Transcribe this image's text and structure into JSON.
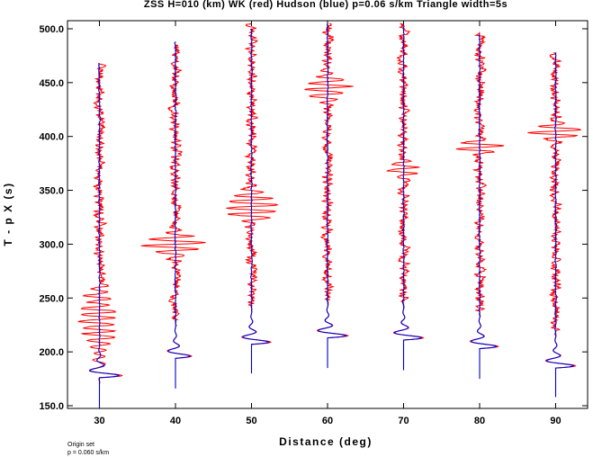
{
  "chart_data": {
    "type": "line",
    "title": "ZSS H=010 (km) WK (red) Hudson (blue) p=0.06 s/km Triangle width=5s",
    "xlabel": "Distance (deg)",
    "ylabel": "T - p X (s)",
    "xlim": [
      25.8,
      94.2
    ],
    "ylim": [
      147.5,
      507.5
    ],
    "xticks": [
      30,
      40,
      50,
      60,
      70,
      80,
      90
    ],
    "yticks": [
      150,
      200,
      250,
      300,
      350,
      400,
      450,
      500
    ],
    "x_tick_labels": [
      "30",
      "40",
      "50",
      "60",
      "70",
      "80",
      "90"
    ],
    "y_tick_labels": [
      "150.0",
      "200.0",
      "250.0",
      "300.0",
      "350.0",
      "400.0",
      "450.0",
      "500.0"
    ],
    "grid": false,
    "colors": {
      "wk": "#ff0000",
      "hudson": "#0000cc",
      "axis": "#000000"
    },
    "series": [
      {
        "name": "WK (red)",
        "traces": [
          {
            "distance": 30,
            "t_start": 170,
            "t_end": 468,
            "onset": 176,
            "amp": 3.5,
            "burst_center": 230,
            "burst_amp": 2.4,
            "burst_width": 30
          },
          {
            "distance": 40,
            "t_start": 186,
            "t_end": 485,
            "onset": 194,
            "amp": 2.6,
            "burst_center": 300,
            "burst_amp": 4.2,
            "burst_width": 10
          },
          {
            "distance": 50,
            "t_start": 196,
            "t_end": 505,
            "onset": 207,
            "amp": 3.1,
            "burst_center": 335,
            "burst_amp": 3.6,
            "burst_width": 14
          },
          {
            "distance": 60,
            "t_start": 200,
            "t_end": 505,
            "onset": 213,
            "amp": 3.3,
            "burst_center": 445,
            "burst_amp": 3.0,
            "burst_width": 12
          },
          {
            "distance": 70,
            "t_start": 198,
            "t_end": 505,
            "onset": 211,
            "amp": 3.2,
            "burst_center": 370,
            "burst_amp": 2.3,
            "burst_width": 8
          },
          {
            "distance": 80,
            "t_start": 193,
            "t_end": 497,
            "onset": 203,
            "amp": 3.0,
            "burst_center": 390,
            "burst_amp": 3.3,
            "burst_width": 6
          },
          {
            "distance": 90,
            "t_start": 176,
            "t_end": 478,
            "onset": 185,
            "amp": 3.2,
            "burst_center": 405,
            "burst_amp": 3.5,
            "burst_width": 8
          }
        ]
      },
      {
        "name": "Hudson (blue)",
        "traces": [
          {
            "distance": 30,
            "t_start": 148,
            "t_end": 468,
            "onset": 176,
            "amp": 3.5
          },
          {
            "distance": 40,
            "t_start": 166,
            "t_end": 488,
            "onset": 194,
            "amp": 2.6
          },
          {
            "distance": 50,
            "t_start": 180,
            "t_end": 500,
            "onset": 207,
            "amp": 3.1
          },
          {
            "distance": 60,
            "t_start": 185,
            "t_end": 505,
            "onset": 213,
            "amp": 3.3
          },
          {
            "distance": 70,
            "t_start": 183,
            "t_end": 503,
            "onset": 211,
            "amp": 3.2
          },
          {
            "distance": 80,
            "t_start": 175,
            "t_end": 495,
            "onset": 203,
            "amp": 3.0
          },
          {
            "distance": 90,
            "t_start": 158,
            "t_end": 478,
            "onset": 185,
            "amp": 3.2
          }
        ]
      }
    ]
  },
  "notes": [
    "Origin set",
    "p = 0.060 s/km"
  ]
}
